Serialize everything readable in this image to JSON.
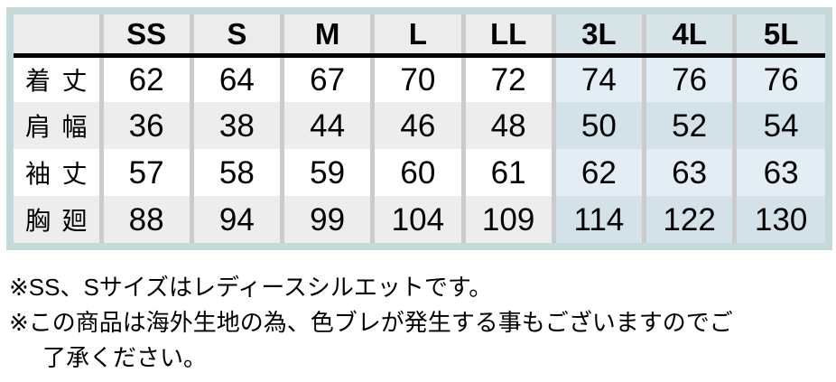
{
  "chart_data": {
    "type": "table",
    "columns": [
      "SS",
      "S",
      "M",
      "L",
      "LL",
      "3L",
      "4L",
      "5L"
    ],
    "highlighted_columns": [
      "3L",
      "4L",
      "5L"
    ],
    "rows": [
      {
        "label": "着丈",
        "values": [
          62,
          64,
          67,
          70,
          72,
          74,
          76,
          76
        ]
      },
      {
        "label": "肩幅",
        "values": [
          36,
          38,
          44,
          46,
          48,
          50,
          52,
          54
        ]
      },
      {
        "label": "袖丈",
        "values": [
          57,
          58,
          59,
          60,
          61,
          62,
          63,
          63
        ]
      },
      {
        "label": "胸廻",
        "values": [
          88,
          94,
          99,
          104,
          109,
          114,
          122,
          130
        ]
      }
    ]
  },
  "notes": [
    {
      "lines": [
        "※SS、Sサイズはレディースシルエットです。"
      ]
    },
    {
      "lines": [
        "※この商品は海外生地の為、色ブレが発生する事もございますのでご",
        "了承ください。"
      ]
    }
  ],
  "colors": {
    "frame_border": "#c6d9d9",
    "header_bg": "#ececec",
    "header_highlight_bg": "#d6e3e7",
    "row_bg": "#ffffff",
    "row_alt_bg": "#ededed",
    "highlight_row_bg": "#e3eef4",
    "highlight_row_alt_bg": "#d3e2e8",
    "column_divider": "#cbcbcb",
    "header_underline": "#000000",
    "text": "#000000"
  }
}
